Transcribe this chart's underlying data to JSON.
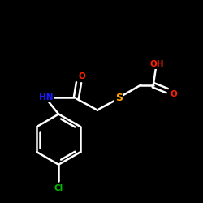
{
  "background": "#000000",
  "bond_color": "#ffffff",
  "atom_colors": {
    "O": "#ff2200",
    "S": "#ffa500",
    "N": "#1a1aff",
    "Cl": "#00bb00",
    "C": "#ffffff",
    "H": "#ffffff"
  },
  "figsize": [
    2.5,
    2.5
  ],
  "dpi": 100,
  "lw": 1.8,
  "fontsize": 8.5
}
